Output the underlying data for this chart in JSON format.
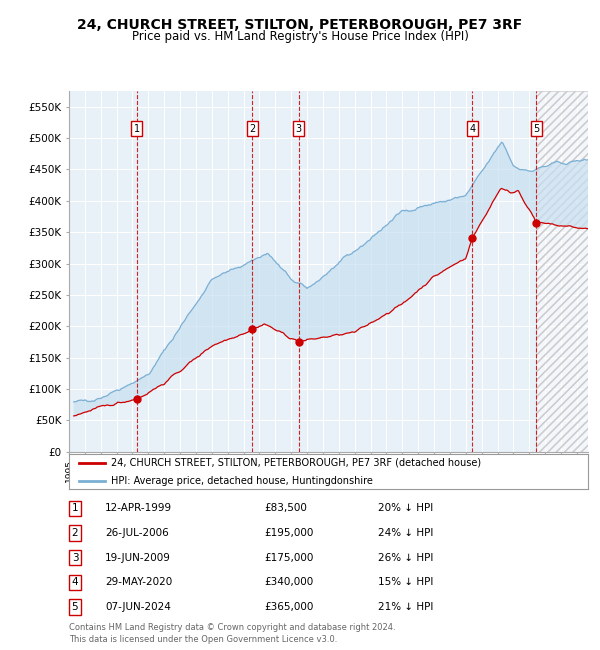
{
  "title": "24, CHURCH STREET, STILTON, PETERBOROUGH, PE7 3RF",
  "subtitle": "Price paid vs. HM Land Registry's House Price Index (HPI)",
  "title_fontsize": 10,
  "subtitle_fontsize": 8.5,
  "ylim": [
    0,
    575000
  ],
  "yticks": [
    0,
    50000,
    100000,
    150000,
    200000,
    250000,
    300000,
    350000,
    400000,
    450000,
    500000,
    550000
  ],
  "ytick_labels": [
    "£0",
    "£50K",
    "£100K",
    "£150K",
    "£200K",
    "£250K",
    "£300K",
    "£350K",
    "£400K",
    "£450K",
    "£500K",
    "£550K"
  ],
  "xlim_start": 1995.3,
  "xlim_end": 2027.7,
  "sale_dates": [
    1999.28,
    2006.56,
    2009.46,
    2020.41,
    2024.43
  ],
  "sale_prices": [
    83500,
    195000,
    175000,
    340000,
    365000
  ],
  "sale_labels": [
    "1",
    "2",
    "3",
    "4",
    "5"
  ],
  "red_line_color": "#cc0000",
  "blue_line_color": "#7aafd4",
  "blue_fill_color": "#c8dff0",
  "hatch_start": 2024.43,
  "legend_line1": "24, CHURCH STREET, STILTON, PETERBOROUGH, PE7 3RF (detached house)",
  "legend_line2": "HPI: Average price, detached house, Huntingdonshire",
  "table_data": [
    [
      "1",
      "12-APR-1999",
      "£83,500",
      "20% ↓ HPI"
    ],
    [
      "2",
      "26-JUL-2006",
      "£195,000",
      "24% ↓ HPI"
    ],
    [
      "3",
      "19-JUN-2009",
      "£175,000",
      "26% ↓ HPI"
    ],
    [
      "4",
      "29-MAY-2020",
      "£340,000",
      "15% ↓ HPI"
    ],
    [
      "5",
      "07-JUN-2024",
      "£365,000",
      "21% ↓ HPI"
    ]
  ],
  "footer": "Contains HM Land Registry data © Crown copyright and database right 2024.\nThis data is licensed under the Open Government Licence v3.0.",
  "plot_bg": "#e8f0f8",
  "grid_color": "#ffffff"
}
